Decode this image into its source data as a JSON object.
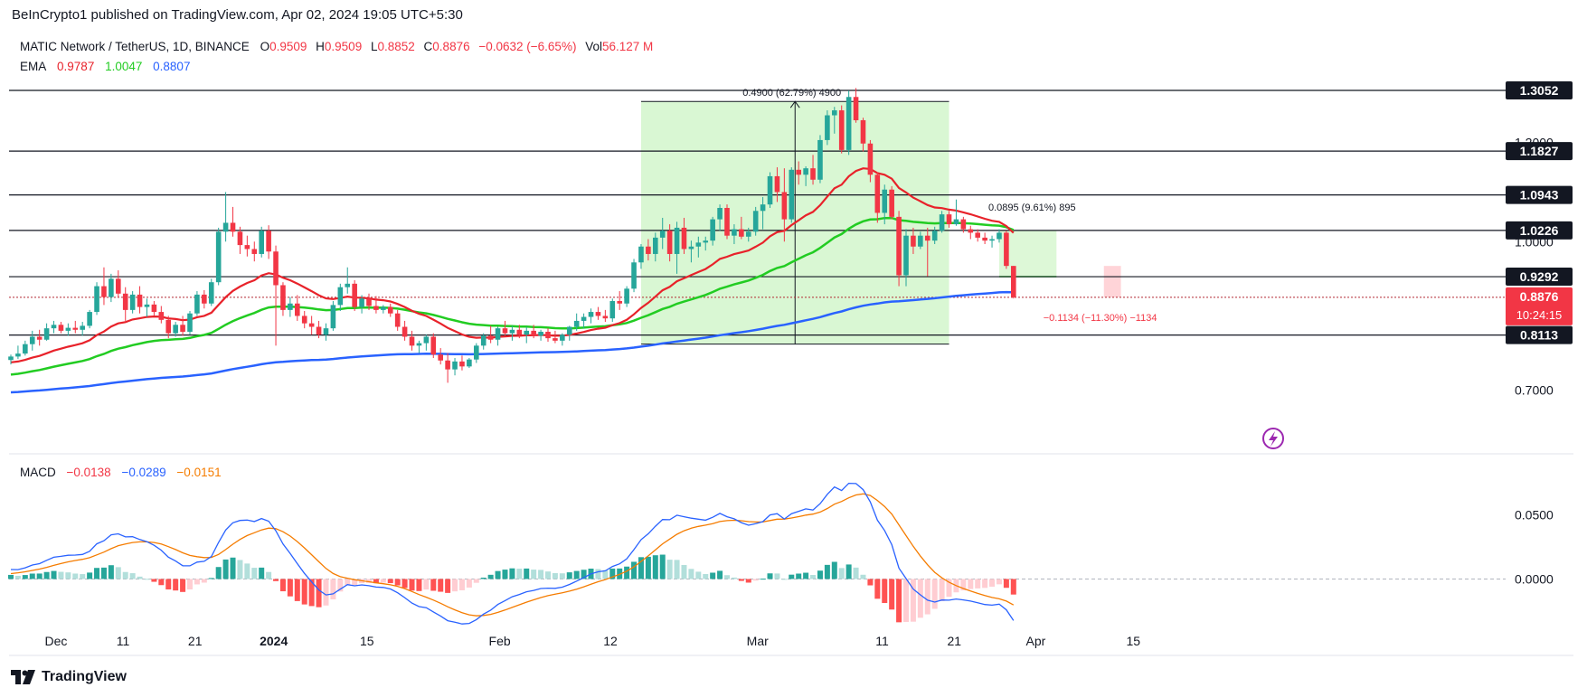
{
  "header": {
    "publisher": "BeInCrypto1 published on TradingView.com, Apr 02, 2024 19:05 UTC+5:30"
  },
  "legend": {
    "symbol": "MATIC Network / TetherUS, 1D, BINANCE",
    "open_label": "O",
    "open": "0.9509",
    "high_label": "H",
    "high": "0.9509",
    "low_label": "L",
    "low": "0.8852",
    "close_label": "C",
    "close": "0.8876",
    "change": "−0.0632 (−6.65%)",
    "vol_label": "Vol",
    "vol": "56.127 M"
  },
  "ema_legend": {
    "label": "EMA",
    "v1": "0.9787",
    "v2": "1.0047",
    "v3": "0.8807"
  },
  "macd_legend": {
    "label": "MACD",
    "v1": "−0.0138",
    "v2": "−0.0289",
    "v3": "−0.0151"
  },
  "colors": {
    "up": "#26a69a",
    "down": "#f23645",
    "ema_fast": "#e8222a",
    "ema_mid": "#22cc22",
    "ema_slow": "#2962ff",
    "macd_line": "#2962ff",
    "signal_line": "#f57c00",
    "range_fill": "#d9f7d3"
  },
  "annotations": {
    "range_up_label": "0.4900 (62.79%) 4900",
    "range_mid_label": "0.0895 (9.61%) 895",
    "range_down_label": "−0.1134 (−11.30%) −1134",
    "countdown": "10:24:15",
    "last_price": "0.8876"
  },
  "footer": {
    "brand": "TradingView",
    "logo_icon": "tradingview-logo-icon"
  },
  "chart_data": {
    "type": "candlestick",
    "symbol": "MATICUSDT",
    "timeframe": "1D",
    "x_start_date": "2023-11-25",
    "x_tick_labels": [
      "Dec",
      "11",
      "21",
      "2024",
      "15",
      "Feb",
      "12",
      "Mar",
      "11",
      "21",
      "Apr",
      "15"
    ],
    "y_tick_labels": [
      "0.7000",
      "1.0000",
      "1.2000"
    ],
    "ylim": [
      0.63,
      1.36
    ],
    "horizontal_levels": [
      "1.3052",
      "1.1827",
      "1.0943",
      "1.0226",
      "0.9292",
      "0.8876",
      "0.8113"
    ],
    "candles": [
      {
        "o": 0.761,
        "h": 0.772,
        "l": 0.752,
        "c": 0.768
      },
      {
        "o": 0.768,
        "h": 0.79,
        "l": 0.763,
        "c": 0.774
      },
      {
        "o": 0.774,
        "h": 0.8,
        "l": 0.77,
        "c": 0.793
      },
      {
        "o": 0.793,
        "h": 0.82,
        "l": 0.78,
        "c": 0.808
      },
      {
        "o": 0.808,
        "h": 0.822,
        "l": 0.79,
        "c": 0.802
      },
      {
        "o": 0.802,
        "h": 0.835,
        "l": 0.8,
        "c": 0.825
      },
      {
        "o": 0.825,
        "h": 0.84,
        "l": 0.815,
        "c": 0.832
      },
      {
        "o": 0.832,
        "h": 0.838,
        "l": 0.815,
        "c": 0.82
      },
      {
        "o": 0.82,
        "h": 0.835,
        "l": 0.81,
        "c": 0.826
      },
      {
        "o": 0.826,
        "h": 0.84,
        "l": 0.815,
        "c": 0.822
      },
      {
        "o": 0.822,
        "h": 0.838,
        "l": 0.81,
        "c": 0.83
      },
      {
        "o": 0.83,
        "h": 0.862,
        "l": 0.825,
        "c": 0.858
      },
      {
        "o": 0.858,
        "h": 0.918,
        "l": 0.852,
        "c": 0.91
      },
      {
        "o": 0.91,
        "h": 0.948,
        "l": 0.872,
        "c": 0.888
      },
      {
        "o": 0.888,
        "h": 0.935,
        "l": 0.878,
        "c": 0.925
      },
      {
        "o": 0.925,
        "h": 0.942,
        "l": 0.888,
        "c": 0.895
      },
      {
        "o": 0.895,
        "h": 0.908,
        "l": 0.84,
        "c": 0.862
      },
      {
        "o": 0.862,
        "h": 0.9,
        "l": 0.855,
        "c": 0.893
      },
      {
        "o": 0.893,
        "h": 0.91,
        "l": 0.855,
        "c": 0.868
      },
      {
        "o": 0.868,
        "h": 0.885,
        "l": 0.848,
        "c": 0.873
      },
      {
        "o": 0.873,
        "h": 0.88,
        "l": 0.85,
        "c": 0.858
      },
      {
        "o": 0.858,
        "h": 0.87,
        "l": 0.835,
        "c": 0.842
      },
      {
        "o": 0.842,
        "h": 0.85,
        "l": 0.805,
        "c": 0.815
      },
      {
        "o": 0.815,
        "h": 0.838,
        "l": 0.808,
        "c": 0.832
      },
      {
        "o": 0.832,
        "h": 0.85,
        "l": 0.81,
        "c": 0.818
      },
      {
        "o": 0.818,
        "h": 0.86,
        "l": 0.812,
        "c": 0.855
      },
      {
        "o": 0.855,
        "h": 0.9,
        "l": 0.85,
        "c": 0.893
      },
      {
        "o": 0.893,
        "h": 0.902,
        "l": 0.865,
        "c": 0.875
      },
      {
        "o": 0.875,
        "h": 0.925,
        "l": 0.87,
        "c": 0.918
      },
      {
        "o": 0.918,
        "h": 1.028,
        "l": 0.912,
        "c": 1.02
      },
      {
        "o": 1.02,
        "h": 1.1,
        "l": 1.0,
        "c": 1.038
      },
      {
        "o": 1.038,
        "h": 1.07,
        "l": 1.01,
        "c": 1.02
      },
      {
        "o": 1.02,
        "h": 1.03,
        "l": 0.975,
        "c": 0.993
      },
      {
        "o": 0.993,
        "h": 1.012,
        "l": 0.97,
        "c": 0.985
      },
      {
        "o": 0.985,
        "h": 1.0,
        "l": 0.96,
        "c": 0.975
      },
      {
        "o": 0.975,
        "h": 1.03,
        "l": 0.968,
        "c": 1.022
      },
      {
        "o": 1.022,
        "h": 1.033,
        "l": 0.965,
        "c": 0.98
      },
      {
        "o": 0.98,
        "h": 0.992,
        "l": 0.79,
        "c": 0.912
      },
      {
        "o": 0.912,
        "h": 0.918,
        "l": 0.85,
        "c": 0.862
      },
      {
        "o": 0.862,
        "h": 0.888,
        "l": 0.848,
        "c": 0.875
      },
      {
        "o": 0.875,
        "h": 0.892,
        "l": 0.84,
        "c": 0.85
      },
      {
        "o": 0.85,
        "h": 0.86,
        "l": 0.825,
        "c": 0.835
      },
      {
        "o": 0.835,
        "h": 0.85,
        "l": 0.812,
        "c": 0.828
      },
      {
        "o": 0.828,
        "h": 0.84,
        "l": 0.805,
        "c": 0.812
      },
      {
        "o": 0.812,
        "h": 0.835,
        "l": 0.8,
        "c": 0.825
      },
      {
        "o": 0.825,
        "h": 0.88,
        "l": 0.82,
        "c": 0.872
      },
      {
        "o": 0.872,
        "h": 0.915,
        "l": 0.86,
        "c": 0.908
      },
      {
        "o": 0.908,
        "h": 0.948,
        "l": 0.895,
        "c": 0.915
      },
      {
        "o": 0.915,
        "h": 0.922,
        "l": 0.86,
        "c": 0.868
      },
      {
        "o": 0.868,
        "h": 0.892,
        "l": 0.855,
        "c": 0.885
      },
      {
        "o": 0.885,
        "h": 0.895,
        "l": 0.862,
        "c": 0.87
      },
      {
        "o": 0.87,
        "h": 0.89,
        "l": 0.855,
        "c": 0.862
      },
      {
        "o": 0.862,
        "h": 0.872,
        "l": 0.855,
        "c": 0.868
      },
      {
        "o": 0.868,
        "h": 0.875,
        "l": 0.848,
        "c": 0.855
      },
      {
        "o": 0.855,
        "h": 0.862,
        "l": 0.82,
        "c": 0.828
      },
      {
        "o": 0.828,
        "h": 0.84,
        "l": 0.8,
        "c": 0.808
      },
      {
        "o": 0.808,
        "h": 0.82,
        "l": 0.78,
        "c": 0.79
      },
      {
        "o": 0.79,
        "h": 0.8,
        "l": 0.775,
        "c": 0.795
      },
      {
        "o": 0.795,
        "h": 0.812,
        "l": 0.78,
        "c": 0.808
      },
      {
        "o": 0.808,
        "h": 0.815,
        "l": 0.765,
        "c": 0.772
      },
      {
        "o": 0.772,
        "h": 0.785,
        "l": 0.752,
        "c": 0.76
      },
      {
        "o": 0.76,
        "h": 0.775,
        "l": 0.715,
        "c": 0.742
      },
      {
        "o": 0.742,
        "h": 0.765,
        "l": 0.73,
        "c": 0.758
      },
      {
        "o": 0.758,
        "h": 0.77,
        "l": 0.74,
        "c": 0.748
      },
      {
        "o": 0.748,
        "h": 0.765,
        "l": 0.745,
        "c": 0.762
      },
      {
        "o": 0.762,
        "h": 0.795,
        "l": 0.755,
        "c": 0.79
      },
      {
        "o": 0.79,
        "h": 0.815,
        "l": 0.782,
        "c": 0.81
      },
      {
        "o": 0.81,
        "h": 0.83,
        "l": 0.795,
        "c": 0.802
      },
      {
        "o": 0.802,
        "h": 0.828,
        "l": 0.79,
        "c": 0.825
      },
      {
        "o": 0.825,
        "h": 0.84,
        "l": 0.81,
        "c": 0.815
      },
      {
        "o": 0.815,
        "h": 0.83,
        "l": 0.8,
        "c": 0.822
      },
      {
        "o": 0.822,
        "h": 0.832,
        "l": 0.805,
        "c": 0.812
      },
      {
        "o": 0.812,
        "h": 0.828,
        "l": 0.795,
        "c": 0.82
      },
      {
        "o": 0.82,
        "h": 0.832,
        "l": 0.805,
        "c": 0.81
      },
      {
        "o": 0.81,
        "h": 0.822,
        "l": 0.8,
        "c": 0.818
      },
      {
        "o": 0.818,
        "h": 0.825,
        "l": 0.798,
        "c": 0.805
      },
      {
        "o": 0.805,
        "h": 0.82,
        "l": 0.795,
        "c": 0.8
      },
      {
        "o": 0.8,
        "h": 0.815,
        "l": 0.79,
        "c": 0.812
      },
      {
        "o": 0.812,
        "h": 0.83,
        "l": 0.8,
        "c": 0.828
      },
      {
        "o": 0.828,
        "h": 0.855,
        "l": 0.82,
        "c": 0.84
      },
      {
        "o": 0.84,
        "h": 0.855,
        "l": 0.825,
        "c": 0.848
      },
      {
        "o": 0.848,
        "h": 0.865,
        "l": 0.835,
        "c": 0.858
      },
      {
        "o": 0.858,
        "h": 0.868,
        "l": 0.842,
        "c": 0.85
      },
      {
        "o": 0.85,
        "h": 0.862,
        "l": 0.838,
        "c": 0.845
      },
      {
        "o": 0.845,
        "h": 0.885,
        "l": 0.838,
        "c": 0.88
      },
      {
        "o": 0.88,
        "h": 0.9,
        "l": 0.862,
        "c": 0.875
      },
      {
        "o": 0.875,
        "h": 0.91,
        "l": 0.868,
        "c": 0.905
      },
      {
        "o": 0.905,
        "h": 0.965,
        "l": 0.898,
        "c": 0.958
      },
      {
        "o": 0.958,
        "h": 0.995,
        "l": 0.945,
        "c": 0.99
      },
      {
        "o": 0.99,
        "h": 1.005,
        "l": 0.962,
        "c": 0.975
      },
      {
        "o": 0.975,
        "h": 1.018,
        "l": 0.96,
        "c": 1.008
      },
      {
        "o": 1.008,
        "h": 1.048,
        "l": 0.985,
        "c": 1.022
      },
      {
        "o": 1.022,
        "h": 1.035,
        "l": 0.96,
        "c": 0.975
      },
      {
        "o": 0.975,
        "h": 1.04,
        "l": 0.935,
        "c": 1.028
      },
      {
        "o": 1.028,
        "h": 1.048,
        "l": 0.975,
        "c": 0.985
      },
      {
        "o": 0.985,
        "h": 1.002,
        "l": 0.958,
        "c": 0.99
      },
      {
        "o": 0.99,
        "h": 1.01,
        "l": 0.968,
        "c": 0.998
      },
      {
        "o": 0.998,
        "h": 1.01,
        "l": 0.982,
        "c": 1.002
      },
      {
        "o": 1.002,
        "h": 1.05,
        "l": 0.992,
        "c": 1.045
      },
      {
        "o": 1.045,
        "h": 1.075,
        "l": 1.022,
        "c": 1.068
      },
      {
        "o": 1.068,
        "h": 1.075,
        "l": 1.005,
        "c": 1.012
      },
      {
        "o": 1.012,
        "h": 1.035,
        "l": 0.995,
        "c": 1.025
      },
      {
        "o": 1.025,
        "h": 1.05,
        "l": 1.005,
        "c": 1.01
      },
      {
        "o": 1.01,
        "h": 1.028,
        "l": 1.0,
        "c": 1.02
      },
      {
        "o": 1.02,
        "h": 1.07,
        "l": 1.012,
        "c": 1.062
      },
      {
        "o": 1.062,
        "h": 1.09,
        "l": 1.025,
        "c": 1.075
      },
      {
        "o": 1.075,
        "h": 1.14,
        "l": 1.068,
        "c": 1.132
      },
      {
        "o": 1.132,
        "h": 1.15,
        "l": 1.08,
        "c": 1.1
      },
      {
        "o": 1.1,
        "h": 1.148,
        "l": 1.0,
        "c": 1.045
      },
      {
        "o": 1.045,
        "h": 1.15,
        "l": 1.038,
        "c": 1.145
      },
      {
        "o": 1.145,
        "h": 1.162,
        "l": 1.115,
        "c": 1.135
      },
      {
        "o": 1.135,
        "h": 1.152,
        "l": 1.112,
        "c": 1.148
      },
      {
        "o": 1.148,
        "h": 1.175,
        "l": 1.115,
        "c": 1.125
      },
      {
        "o": 1.125,
        "h": 1.215,
        "l": 1.118,
        "c": 1.205
      },
      {
        "o": 1.205,
        "h": 1.265,
        "l": 1.195,
        "c": 1.255
      },
      {
        "o": 1.255,
        "h": 1.272,
        "l": 1.218,
        "c": 1.265
      },
      {
        "o": 1.265,
        "h": 1.275,
        "l": 1.178,
        "c": 1.185
      },
      {
        "o": 1.185,
        "h": 1.305,
        "l": 1.175,
        "c": 1.292
      },
      {
        "o": 1.292,
        "h": 1.31,
        "l": 1.24,
        "c": 1.245
      },
      {
        "o": 1.245,
        "h": 1.25,
        "l": 1.182,
        "c": 1.198
      },
      {
        "o": 1.198,
        "h": 1.205,
        "l": 1.12,
        "c": 1.135
      },
      {
        "o": 1.135,
        "h": 1.14,
        "l": 1.038,
        "c": 1.058
      },
      {
        "o": 1.058,
        "h": 1.115,
        "l": 1.035,
        "c": 1.105
      },
      {
        "o": 1.105,
        "h": 1.112,
        "l": 1.045,
        "c": 1.05
      },
      {
        "o": 1.05,
        "h": 1.062,
        "l": 0.91,
        "c": 0.932
      },
      {
        "o": 0.932,
        "h": 1.025,
        "l": 0.91,
        "c": 1.012
      },
      {
        "o": 1.012,
        "h": 1.028,
        "l": 0.975,
        "c": 0.99
      },
      {
        "o": 0.99,
        "h": 1.02,
        "l": 0.985,
        "c": 1.012
      },
      {
        "o": 1.012,
        "h": 1.028,
        "l": 0.93,
        "c": 1.002
      },
      {
        "o": 1.002,
        "h": 1.03,
        "l": 0.995,
        "c": 1.022
      },
      {
        "o": 1.022,
        "h": 1.062,
        "l": 1.018,
        "c": 1.055
      },
      {
        "o": 1.055,
        "h": 1.062,
        "l": 1.028,
        "c": 1.035
      },
      {
        "o": 1.035,
        "h": 1.085,
        "l": 1.032,
        "c": 1.045
      },
      {
        "o": 1.045,
        "h": 1.05,
        "l": 1.018,
        "c": 1.025
      },
      {
        "o": 1.025,
        "h": 1.032,
        "l": 1.005,
        "c": 1.018
      },
      {
        "o": 1.018,
        "h": 1.025,
        "l": 1.0,
        "c": 1.008
      },
      {
        "o": 1.008,
        "h": 1.018,
        "l": 0.995,
        "c": 1.002
      },
      {
        "o": 1.002,
        "h": 1.012,
        "l": 0.988,
        "c": 1.005
      },
      {
        "o": 1.005,
        "h": 1.025,
        "l": 0.998,
        "c": 1.018
      },
      {
        "o": 1.018,
        "h": 1.022,
        "l": 0.945,
        "c": 0.9509
      },
      {
        "o": 0.9509,
        "h": 0.9509,
        "l": 0.8852,
        "c": 0.8876
      }
    ],
    "macd_ylim": [
      -0.042,
      0.085
    ],
    "macd_y_tick_labels": [
      "0.0500",
      "0.0000"
    ]
  }
}
